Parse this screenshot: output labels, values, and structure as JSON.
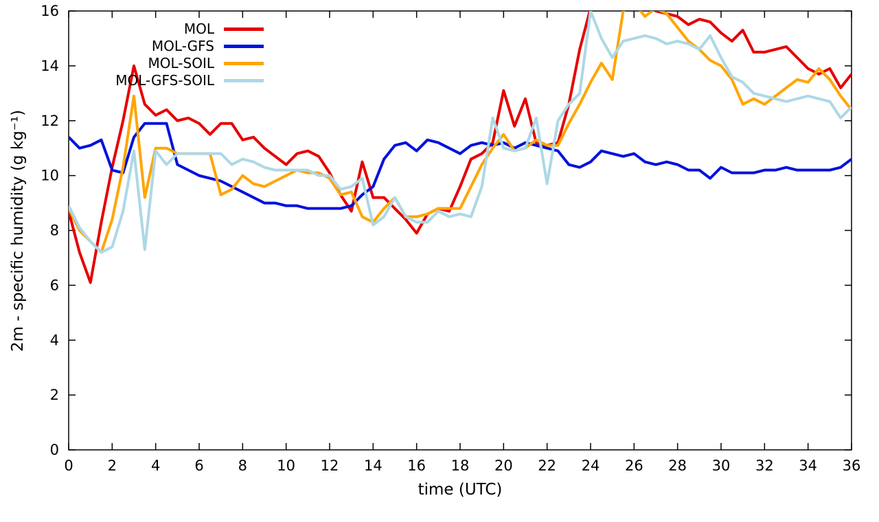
{
  "chart_data": {
    "type": "line",
    "title": "",
    "xlabel": "time (UTC)",
    "ylabel": "2m - specific humidity (g kg⁻¹)",
    "xlim": [
      0,
      36
    ],
    "ylim": [
      0,
      16
    ],
    "xticks": [
      0,
      2,
      4,
      6,
      8,
      10,
      12,
      14,
      16,
      18,
      20,
      22,
      24,
      26,
      28,
      30,
      32,
      34,
      36
    ],
    "yticks": [
      0,
      2,
      4,
      6,
      8,
      10,
      12,
      14,
      16
    ],
    "grid": false,
    "legend_position": "top-left-inside",
    "x_start": 0,
    "x_step": 0.5,
    "series": [
      {
        "name": "MOL",
        "color": "#e60000",
        "values": [
          8.7,
          7.2,
          6.1,
          8.3,
          10.3,
          12.0,
          14.0,
          12.6,
          12.2,
          12.4,
          12.0,
          12.1,
          11.9,
          11.5,
          11.9,
          11.9,
          11.3,
          11.4,
          11.0,
          10.7,
          10.4,
          10.8,
          10.9,
          10.7,
          10.1,
          9.3,
          8.7,
          10.5,
          9.2,
          9.2,
          8.8,
          8.4,
          7.9,
          8.6,
          8.8,
          8.7,
          9.6,
          10.6,
          10.8,
          11.2,
          13.1,
          11.8,
          12.8,
          11.2,
          11.1,
          11.2,
          12.6,
          14.6,
          16.1,
          16.4,
          16.5,
          16.4,
          16.3,
          16.2,
          16.0,
          15.9,
          15.8,
          15.5,
          15.7,
          15.6,
          15.2,
          14.9,
          15.3,
          14.5,
          14.5,
          14.6,
          14.7,
          14.3,
          13.9,
          13.7,
          13.9,
          13.2,
          13.7
        ]
      },
      {
        "name": "MOL-GFS",
        "color": "#0011dd",
        "values": [
          11.4,
          11.0,
          11.1,
          11.3,
          10.2,
          10.1,
          11.4,
          11.9,
          11.9,
          11.9,
          10.4,
          10.2,
          10.0,
          9.9,
          9.8,
          9.6,
          9.4,
          9.2,
          9.0,
          9.0,
          8.9,
          8.9,
          8.8,
          8.8,
          8.8,
          8.8,
          8.9,
          9.3,
          9.6,
          10.6,
          11.1,
          11.2,
          10.9,
          11.3,
          11.2,
          11.0,
          10.8,
          11.1,
          11.2,
          11.1,
          11.2,
          11.0,
          11.2,
          11.1,
          11.0,
          10.9,
          10.4,
          10.3,
          10.5,
          10.9,
          10.8,
          10.7,
          10.8,
          10.5,
          10.4,
          10.5,
          10.4,
          10.2,
          10.2,
          9.9,
          10.3,
          10.1,
          10.1,
          10.1,
          10.2,
          10.2,
          10.3,
          10.2,
          10.2,
          10.2,
          10.2,
          10.3,
          10.6
        ]
      },
      {
        "name": "MOL-SOIL",
        "color": "#ffa500",
        "values": [
          8.8,
          8.0,
          7.6,
          7.2,
          8.4,
          10.3,
          12.9,
          9.2,
          11.0,
          11.0,
          10.8,
          10.8,
          10.8,
          10.8,
          9.3,
          9.5,
          10.0,
          9.7,
          9.6,
          9.8,
          10.0,
          10.2,
          10.1,
          10.1,
          9.9,
          9.3,
          9.4,
          8.5,
          8.3,
          8.8,
          9.2,
          8.5,
          8.5,
          8.6,
          8.8,
          8.8,
          8.8,
          9.6,
          10.4,
          11.0,
          11.5,
          10.9,
          11.0,
          11.3,
          11.1,
          11.1,
          11.9,
          12.6,
          13.4,
          14.1,
          13.5,
          16.0,
          16.3,
          15.8,
          16.1,
          15.9,
          15.4,
          14.9,
          14.6,
          14.2,
          14.0,
          13.5,
          12.6,
          12.8,
          12.6,
          12.9,
          13.2,
          13.5,
          13.4,
          13.9,
          13.5,
          12.9,
          12.4
        ]
      },
      {
        "name": "MOL-GFS-SOIL",
        "color": "#add8e6",
        "values": [
          8.9,
          8.1,
          7.6,
          7.2,
          7.4,
          8.7,
          10.9,
          7.3,
          10.9,
          10.4,
          10.8,
          10.8,
          10.8,
          10.8,
          10.8,
          10.4,
          10.6,
          10.5,
          10.3,
          10.2,
          10.2,
          10.2,
          10.2,
          10.0,
          10.0,
          9.5,
          9.6,
          9.9,
          8.2,
          8.5,
          9.2,
          8.5,
          8.3,
          8.3,
          8.7,
          8.5,
          8.6,
          8.5,
          9.6,
          12.1,
          11.0,
          10.9,
          11.0,
          12.1,
          9.7,
          12.0,
          12.6,
          13.0,
          16.0,
          15.0,
          14.3,
          14.9,
          15.0,
          15.1,
          15.0,
          14.8,
          14.9,
          14.8,
          14.6,
          15.1,
          14.3,
          13.6,
          13.4,
          13.0,
          12.9,
          12.8,
          12.7,
          12.8,
          12.9,
          12.8,
          12.7,
          12.1,
          12.5
        ]
      }
    ]
  }
}
